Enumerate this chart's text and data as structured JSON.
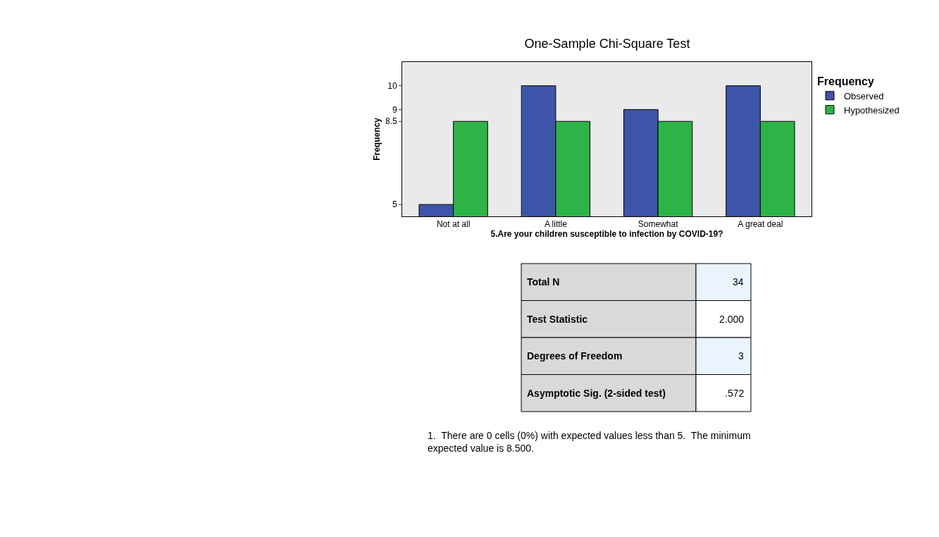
{
  "chart_data": {
    "type": "bar",
    "title": "One-Sample Chi-Square Test",
    "xlabel": "5.Are your children susceptible to infection by COVID-19?",
    "ylabel": "Frequency",
    "legend_title": "Frequency",
    "categories": [
      "Not at all",
      "A little",
      "Somewhat",
      "A great deal"
    ],
    "series": [
      {
        "name": "Observed",
        "color": "#3c55a9",
        "values": [
          5,
          10,
          9,
          10
        ]
      },
      {
        "name": "Hypothesized",
        "color": "#2db446",
        "values": [
          8.5,
          8.5,
          8.5,
          8.5
        ]
      }
    ],
    "ylim": [
      4.5,
      11
    ],
    "yticks": [
      5,
      8.5,
      9,
      10
    ],
    "grid": false,
    "legend": "top right",
    "annotations": [
      "Total N",
      "34",
      "Test Statistic",
      "2.000",
      "Degrees of Freedom",
      "3",
      "Asymptotic Sig. (2-sided test)",
      ".572",
      "1.  There are 0 cells (0%) with expected values less than 5.  The minimum expected value is 8.500."
    ]
  }
}
